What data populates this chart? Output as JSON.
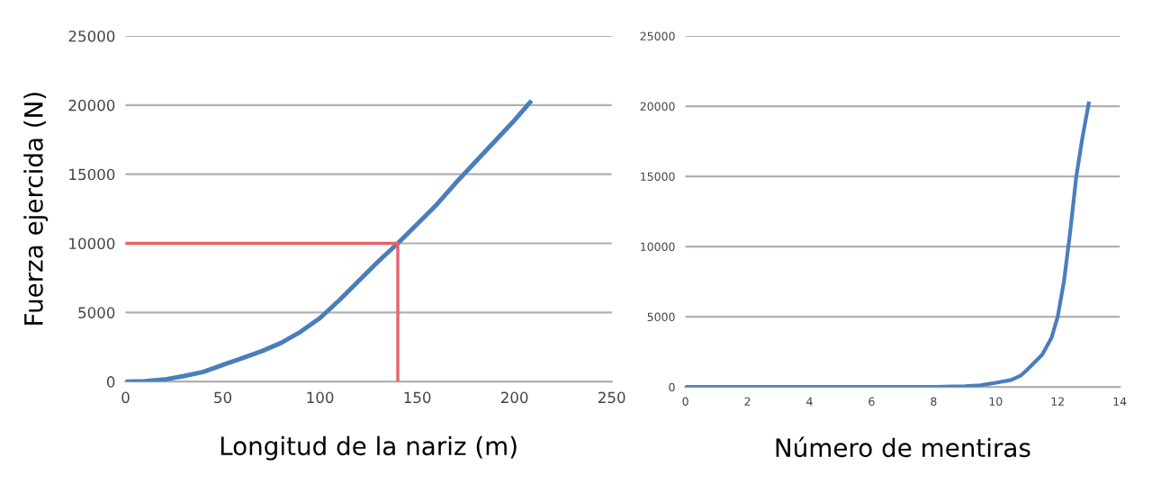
{
  "chart_data": [
    {
      "type": "line",
      "xlabel": "Longitud de la nariz (m)",
      "ylabel": "Fuerza ejercida (N)",
      "xlim": [
        0,
        250
      ],
      "xticks": [
        0,
        50,
        100,
        150,
        200,
        250
      ],
      "ylim": [
        0,
        25000
      ],
      "yticks": [
        0,
        5000,
        10000,
        15000,
        20000,
        25000
      ],
      "grid": "y",
      "series": [
        {
          "color": "#4a7ebb",
          "x": [
            0,
            10,
            20,
            30,
            40,
            50,
            60,
            70,
            80,
            90,
            100,
            110,
            120,
            130,
            140,
            150,
            160,
            170,
            180,
            190,
            200,
            208
          ],
          "values": [
            0,
            30,
            150,
            400,
            700,
            1200,
            1700,
            2200,
            2800,
            3600,
            4600,
            5900,
            7300,
            8700,
            10000,
            11400,
            12800,
            14400,
            15900,
            17400,
            18900,
            20200
          ]
        },
        {
          "color": "#e8606a",
          "x": [
            0,
            140,
            140
          ],
          "values": [
            10000,
            10000,
            0
          ]
        }
      ]
    },
    {
      "type": "line",
      "xlabel": "Número de mentiras",
      "xlim": [
        0,
        14
      ],
      "xticks": [
        0,
        2,
        4,
        6,
        8,
        10,
        12,
        14
      ],
      "ylim": [
        0,
        25000
      ],
      "yticks": [
        0,
        5000,
        10000,
        15000,
        20000,
        25000
      ],
      "grid": "y",
      "series": [
        {
          "color": "#4a7ebb",
          "x": [
            0,
            8,
            9,
            9.5,
            10,
            10.5,
            10.8,
            11,
            11.5,
            11.8,
            12,
            12.2,
            12.4,
            12.6,
            12.8,
            13
          ],
          "values": [
            0,
            0,
            50,
            120,
            300,
            500,
            800,
            1200,
            2300,
            3500,
            5000,
            7500,
            11000,
            15000,
            17800,
            20200
          ]
        }
      ]
    }
  ]
}
